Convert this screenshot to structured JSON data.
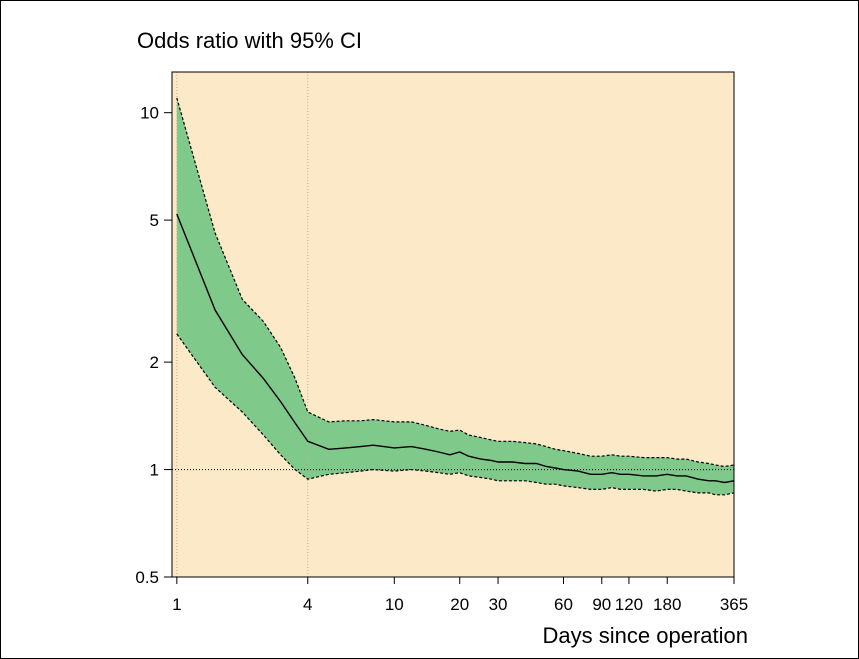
{
  "chart_data": {
    "type": "area",
    "title": "Odds ratio with 95% CI",
    "xlabel": "Days since operation",
    "ylabel": "",
    "x_scale": "log",
    "y_scale": "log",
    "xlim": [
      0.95,
      365
    ],
    "ylim": [
      0.5,
      13
    ],
    "x_ticks": [
      1,
      4,
      10,
      20,
      30,
      60,
      90,
      120,
      180,
      365
    ],
    "y_ticks": [
      0.5,
      1,
      2,
      5,
      10
    ],
    "reference_line_y": 1,
    "reference_line_x": [
      1,
      4
    ],
    "grid": false,
    "colors": {
      "background": "#fce9c8",
      "band_fill": "#7fc98b",
      "line": "#000000",
      "band_border": "#000000"
    },
    "series": [
      {
        "x": [
          1,
          1.5,
          2,
          2.5,
          3,
          3.5,
          4,
          5,
          6,
          7,
          8,
          10,
          12,
          14,
          16,
          18,
          20,
          22,
          25,
          28,
          30,
          35,
          40,
          45,
          50,
          55,
          60,
          70,
          80,
          90,
          100,
          110,
          120,
          140,
          160,
          180,
          200,
          220,
          250,
          280,
          300,
          330,
          365
        ],
        "or": [
          5.2,
          2.8,
          2.1,
          1.8,
          1.55,
          1.35,
          1.2,
          1.14,
          1.15,
          1.16,
          1.17,
          1.15,
          1.16,
          1.14,
          1.12,
          1.1,
          1.12,
          1.09,
          1.07,
          1.06,
          1.05,
          1.05,
          1.04,
          1.04,
          1.02,
          1.01,
          1.0,
          0.99,
          0.97,
          0.97,
          0.98,
          0.97,
          0.97,
          0.96,
          0.96,
          0.97,
          0.96,
          0.96,
          0.94,
          0.93,
          0.93,
          0.92,
          0.93
        ],
        "lower": [
          2.4,
          1.7,
          1.45,
          1.25,
          1.1,
          1.0,
          0.94,
          0.97,
          0.98,
          0.99,
          1.0,
          0.99,
          1.0,
          0.99,
          0.98,
          0.97,
          0.98,
          0.96,
          0.95,
          0.94,
          0.93,
          0.93,
          0.93,
          0.92,
          0.91,
          0.91,
          0.9,
          0.89,
          0.88,
          0.88,
          0.89,
          0.88,
          0.88,
          0.88,
          0.87,
          0.88,
          0.88,
          0.87,
          0.86,
          0.86,
          0.85,
          0.85,
          0.86
        ],
        "upper": [
          11.0,
          4.6,
          3.0,
          2.6,
          2.2,
          1.8,
          1.45,
          1.36,
          1.37,
          1.37,
          1.38,
          1.36,
          1.36,
          1.33,
          1.3,
          1.28,
          1.29,
          1.25,
          1.23,
          1.21,
          1.2,
          1.2,
          1.19,
          1.18,
          1.16,
          1.14,
          1.13,
          1.11,
          1.09,
          1.09,
          1.1,
          1.09,
          1.09,
          1.08,
          1.08,
          1.08,
          1.07,
          1.07,
          1.05,
          1.04,
          1.03,
          1.02,
          1.03
        ]
      }
    ]
  }
}
